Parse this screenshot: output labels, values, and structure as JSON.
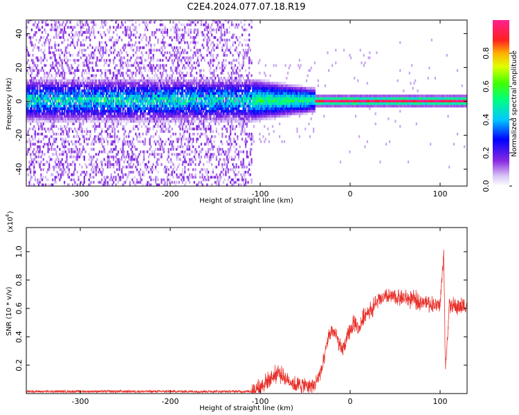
{
  "title": "C2E4.2024.077.07.18.R19",
  "colors": {
    "snr_line": "#e8302a",
    "axis": "#000000",
    "background": "#ffffff"
  },
  "chart_data": [
    {
      "type": "heatmap",
      "name": "spectrogram",
      "xlabel": "Height of straight line (km)",
      "ylabel": "Frequency (Hz)",
      "xlim": [
        -360,
        130
      ],
      "ylim": [
        -50,
        48
      ],
      "x_ticks": [
        -300,
        -200,
        -100,
        0,
        100
      ],
      "y_ticks": [
        -40,
        -20,
        0,
        20,
        40
      ],
      "colorbar": {
        "label": "Normalized spectral amplitude",
        "range": [
          0,
          1
        ],
        "ticks": [
          0.0,
          0.2,
          0.4,
          0.6,
          0.8
        ],
        "colormap": "rainbow"
      },
      "description_values": {
        "noise_region_x": [
          -360,
          -110
        ],
        "signal_center_frequency_hz": 0
      }
    },
    {
      "type": "line",
      "name": "snr",
      "xlabel": "Height of straight line (km)",
      "ylabel": "SNR (10 * v/v)",
      "y_multiplier": "(x10",
      "y_multiplier_exp": "4",
      "xlim": [
        -360,
        130
      ],
      "ylim": [
        0,
        1.17
      ],
      "x_ticks": [
        -300,
        -200,
        -100,
        0,
        100
      ],
      "y_ticks": [
        0.2,
        0.4,
        0.6,
        0.8,
        1.0
      ],
      "series": [
        {
          "values_x": [
            -360,
            -300,
            -200,
            -110,
            -100,
            -90,
            -80,
            -70,
            -60,
            -50,
            -40,
            -30,
            -25,
            -20,
            -15,
            -10,
            -5,
            0,
            5,
            10,
            15,
            20,
            25,
            30,
            40,
            50,
            60,
            70,
            80,
            90,
            100,
            104,
            106,
            110,
            120,
            130
          ],
          "values_y": [
            0.015,
            0.015,
            0.015,
            0.015,
            0.05,
            0.1,
            0.15,
            0.1,
            0.06,
            0.06,
            0.05,
            0.2,
            0.38,
            0.45,
            0.4,
            0.3,
            0.35,
            0.45,
            0.5,
            0.45,
            0.55,
            0.58,
            0.6,
            0.65,
            0.68,
            0.68,
            0.67,
            0.66,
            0.65,
            0.63,
            0.62,
            1.0,
            0.15,
            0.62,
            0.61,
            0.62
          ],
          "noise": 0.05
        }
      ]
    }
  ]
}
